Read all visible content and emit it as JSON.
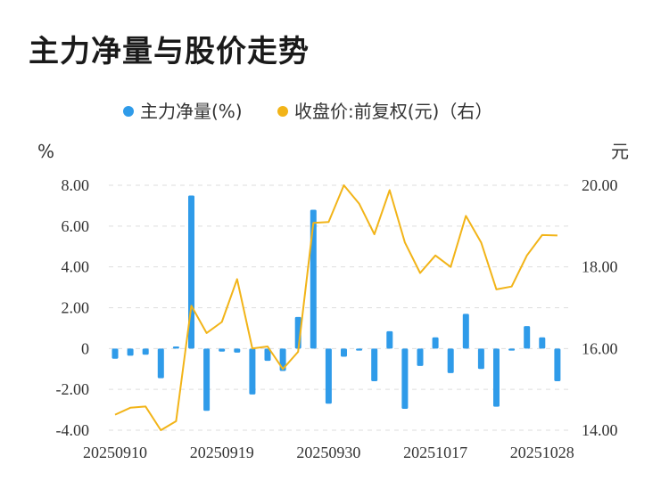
{
  "title": "主力净量与股价走势",
  "legend": {
    "left_label": "主力净量(%)",
    "right_label": "收盘价:前复权(元)（右）"
  },
  "left_unit": "%",
  "right_unit": "元",
  "colors": {
    "bar": "#2f9be9",
    "line": "#f2b418",
    "grid": "#dddddd"
  },
  "chart_data": {
    "type": "bar",
    "x_tick_labels": [
      "20250910",
      "20250919",
      "20250930",
      "20251017",
      "20251028"
    ],
    "x_tick_positions": [
      0,
      7,
      14,
      21,
      28
    ],
    "y_left": {
      "ticks": [
        "8.00",
        "6.00",
        "4.00",
        "2.00",
        "0",
        "-2.00",
        "-4.00"
      ],
      "ylim": [
        -4,
        8
      ]
    },
    "y_right": {
      "ticks": [
        "20.00",
        "18.00",
        "16.00",
        "14.00"
      ],
      "ylim": [
        14,
        20
      ]
    },
    "grid": true,
    "legend_position": "top",
    "series": [
      {
        "name": "主力净量(%)",
        "type": "bar",
        "axis": "left",
        "values": [
          -0.5,
          -0.35,
          -0.3,
          -1.45,
          0.1,
          7.5,
          -3.05,
          -0.15,
          -0.2,
          -2.25,
          -0.6,
          -1.1,
          1.55,
          6.8,
          -2.7,
          -0.4,
          -0.1,
          -1.6,
          0.85,
          -2.95,
          -0.85,
          0.55,
          -1.2,
          1.7,
          -1.0,
          -2.85,
          -0.1,
          1.1,
          0.55,
          -1.6
        ]
      },
      {
        "name": "收盘价:前复权(元)（右）",
        "type": "line",
        "axis": "right",
        "values": [
          14.38,
          14.55,
          14.58,
          14.0,
          14.22,
          17.05,
          16.38,
          16.65,
          17.7,
          16.0,
          16.05,
          15.5,
          15.92,
          19.08,
          19.1,
          20.0,
          19.55,
          18.8,
          19.88,
          18.6,
          17.85,
          18.28,
          18.0,
          19.25,
          18.6,
          17.45,
          17.52,
          18.28,
          18.78,
          18.77
        ]
      }
    ]
  }
}
